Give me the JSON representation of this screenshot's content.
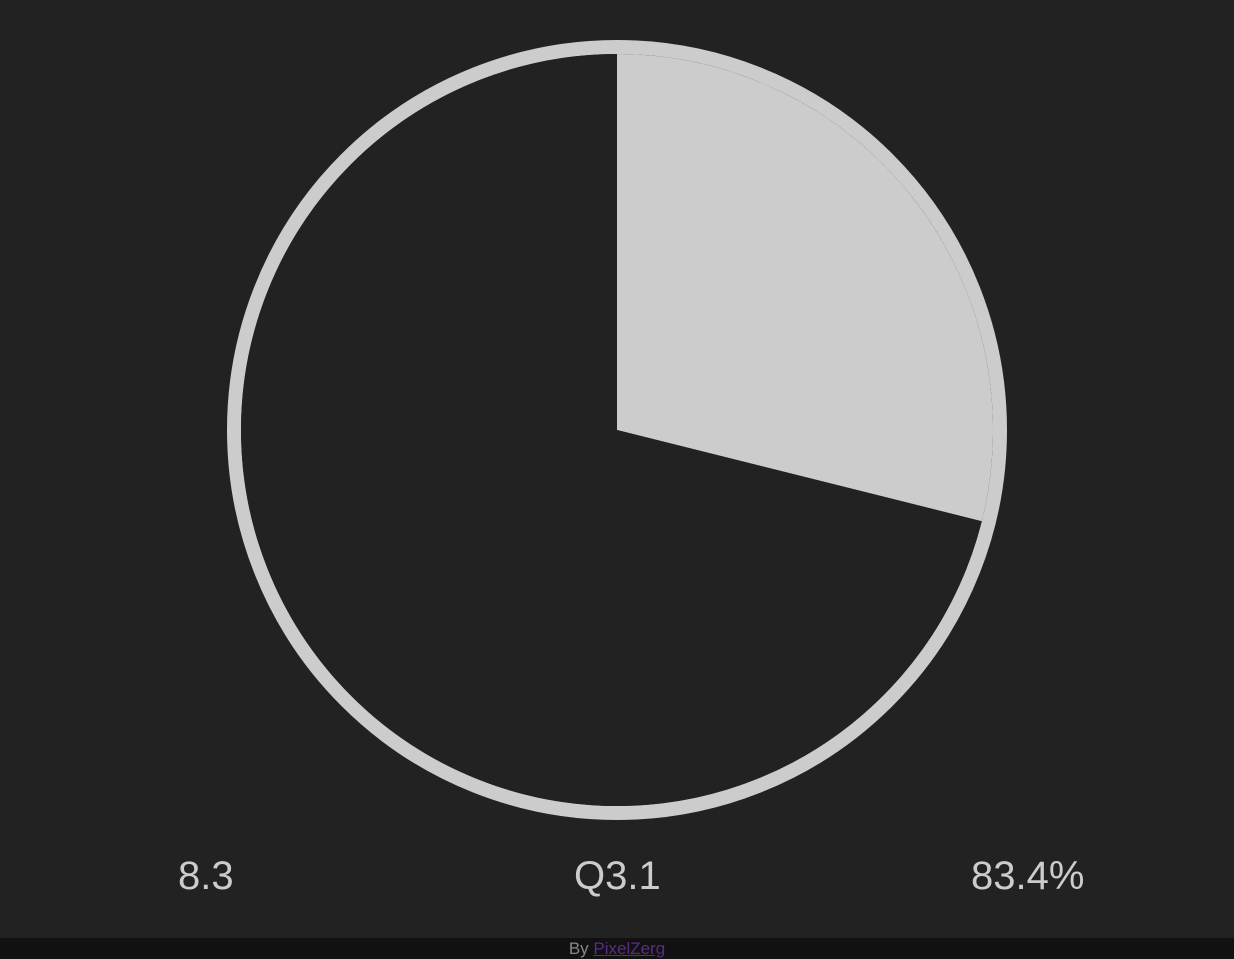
{
  "colors": {
    "background": "#222222",
    "pie_fill": "#cccccc",
    "pie_ring": "#cccccc",
    "text": "#cccccc",
    "footer_background": "#111111",
    "footer_text": "#888888",
    "footer_link": "#5a2d82"
  },
  "stats": {
    "left": "8.3",
    "center": "Q3.1",
    "right": "83.4%"
  },
  "footer": {
    "prefix": "By ",
    "link_text": "PixelZerg"
  },
  "chart_data": {
    "type": "pie",
    "slices": [
      {
        "value": 0.289,
        "color": "#cccccc"
      },
      {
        "value": 0.711,
        "color": "#222222"
      }
    ],
    "start": "12 o'clock",
    "direction": "clockwise",
    "outline": true
  }
}
